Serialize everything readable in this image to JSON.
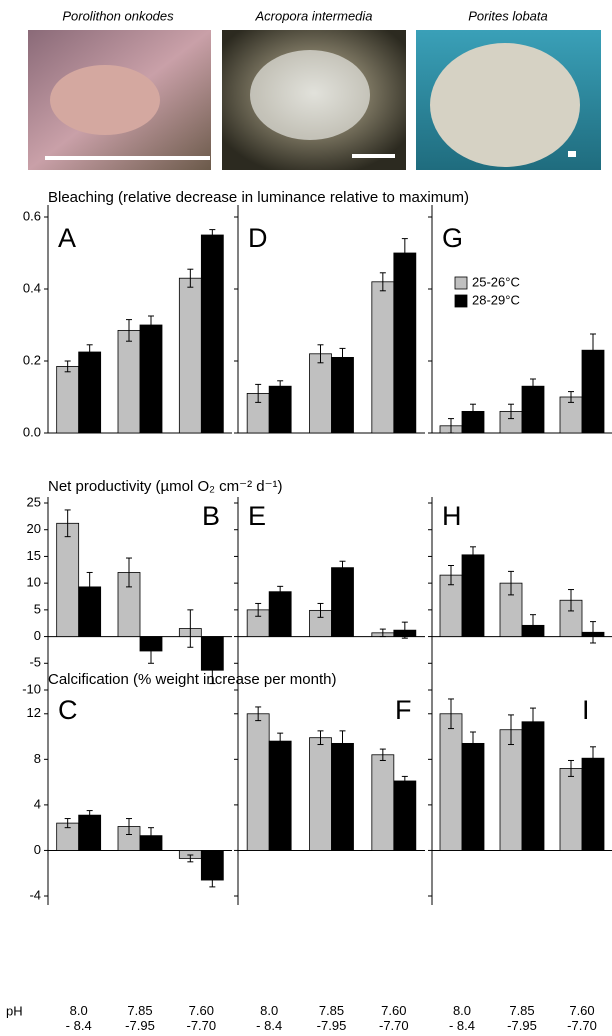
{
  "photos": [
    {
      "caption": "Porolithon onkodes"
    },
    {
      "caption": "Acropora intermedia"
    },
    {
      "caption": "Porites lobata"
    }
  ],
  "row_titles": [
    "Bleaching (relative decrease in luminance relative to maximum)",
    "Net productivity (µmol O₂ cm⁻² d⁻¹)",
    "Calcification (% weight increase per month)"
  ],
  "chart_data": [
    {
      "type": "bar",
      "title": "A",
      "ylim": [
        0,
        0.6
      ],
      "yticks": [
        {
          "value": 0,
          "label": "0.0"
        },
        0.2,
        0.4,
        0.6
      ],
      "tick_labels": true,
      "series": [
        {
          "color": "#c0c0c0",
          "values": [
            0.185,
            0.285,
            0.43
          ],
          "errors": [
            0.015,
            0.03,
            0.025
          ]
        },
        {
          "color": "#000000",
          "values": [
            0.225,
            0.3,
            0.55
          ],
          "errors": [
            0.02,
            0.025,
            0.015
          ]
        }
      ]
    },
    {
      "type": "bar",
      "title": "D",
      "ylim": [
        0,
        0.6
      ],
      "yticks": [
        0,
        0.2,
        0.4,
        0.6
      ],
      "tick_labels": false,
      "series": [
        {
          "color": "#c0c0c0",
          "values": [
            0.11,
            0.22,
            0.42
          ],
          "errors": [
            0.025,
            0.025,
            0.025
          ]
        },
        {
          "color": "#000000",
          "values": [
            0.13,
            0.21,
            0.5
          ],
          "errors": [
            0.015,
            0.025,
            0.04
          ]
        }
      ]
    },
    {
      "type": "bar",
      "title": "G",
      "ylim": [
        0,
        0.6
      ],
      "yticks": [
        0,
        0.2,
        0.4,
        0.6
      ],
      "tick_labels": false,
      "series": [
        {
          "name": "25-26°C",
          "color": "#c0c0c0",
          "values": [
            0.02,
            0.06,
            0.1
          ],
          "errors": [
            0.02,
            0.02,
            0.015
          ]
        },
        {
          "name": "28-29°C",
          "color": "#000000",
          "values": [
            0.06,
            0.13,
            0.23
          ],
          "errors": [
            0.02,
            0.02,
            0.045
          ]
        }
      ]
    },
    {
      "type": "bar",
      "title": "B",
      "ylim": [
        -10,
        25
      ],
      "yticks": [
        -10,
        -5,
        0,
        5,
        10,
        15,
        20,
        25
      ],
      "tick_labels": true,
      "series": [
        {
          "color": "#c0c0c0",
          "values": [
            21.2,
            12,
            1.5
          ],
          "errors": [
            2.5,
            2.7,
            3.5
          ]
        },
        {
          "color": "#000000",
          "values": [
            9.3,
            -2.7,
            -6.3
          ],
          "errors": [
            2.7,
            2.3,
            2.5
          ]
        }
      ]
    },
    {
      "type": "bar",
      "title": "E",
      "ylim": [
        -10,
        25
      ],
      "yticks": [
        -10,
        -5,
        0,
        5,
        10,
        15,
        20,
        25
      ],
      "tick_labels": false,
      "series": [
        {
          "color": "#c0c0c0",
          "values": [
            5,
            4.9,
            0.7
          ],
          "errors": [
            1.2,
            1.3,
            0.7
          ]
        },
        {
          "color": "#000000",
          "values": [
            8.4,
            12.9,
            1.2
          ],
          "errors": [
            1,
            1.2,
            1.5
          ]
        }
      ]
    },
    {
      "type": "bar",
      "title": "H",
      "ylim": [
        -10,
        25
      ],
      "yticks": [
        -10,
        -5,
        0,
        5,
        10,
        15,
        20,
        25
      ],
      "tick_labels": false,
      "series": [
        {
          "color": "#c0c0c0",
          "values": [
            11.5,
            10,
            6.8
          ],
          "errors": [
            1.8,
            2.2,
            2
          ]
        },
        {
          "color": "#000000",
          "values": [
            15.3,
            2.1,
            0.8
          ],
          "errors": [
            1.5,
            2,
            2
          ]
        }
      ]
    },
    {
      "type": "bar",
      "title": "C",
      "ylim": [
        -4,
        14
      ],
      "yticks": [
        -4,
        0,
        4,
        8,
        12
      ],
      "tick_labels": true,
      "x_label": "pH",
      "categories": [
        "8.0\n- 8.4",
        "7.85\n-7.95",
        "7.60\n-7.70"
      ],
      "series": [
        {
          "color": "#c0c0c0",
          "values": [
            2.4,
            2.1,
            -0.7
          ],
          "errors": [
            0.4,
            0.7,
            0.3
          ]
        },
        {
          "color": "#000000",
          "values": [
            3.1,
            1.3,
            -2.6
          ],
          "errors": [
            0.4,
            0.7,
            0.6
          ]
        }
      ]
    },
    {
      "type": "bar",
      "title": "F",
      "ylim": [
        -4,
        14
      ],
      "yticks": [
        -4,
        0,
        4,
        8,
        12
      ],
      "tick_labels": false,
      "categories": [
        "8.0\n- 8.4",
        "7.85\n-7.95",
        "7.60\n-7.70"
      ],
      "series": [
        {
          "color": "#c0c0c0",
          "values": [
            12,
            9.9,
            8.4
          ],
          "errors": [
            0.6,
            0.6,
            0.5
          ]
        },
        {
          "color": "#000000",
          "values": [
            9.6,
            9.4,
            6.1
          ],
          "errors": [
            0.7,
            1.1,
            0.4
          ]
        }
      ]
    },
    {
      "type": "bar",
      "title": "I",
      "ylim": [
        -4,
        14
      ],
      "yticks": [
        -4,
        0,
        4,
        8,
        12
      ],
      "tick_labels": false,
      "categories": [
        "8.0\n- 8.4",
        "7.85\n-7.95",
        "7.60\n-7.70"
      ],
      "series": [
        {
          "color": "#c0c0c0",
          "values": [
            12,
            10.6,
            7.2
          ],
          "errors": [
            1.3,
            1.3,
            0.7
          ]
        },
        {
          "color": "#000000",
          "values": [
            9.4,
            11.3,
            8.1
          ],
          "errors": [
            1,
            1.2,
            1
          ]
        }
      ]
    }
  ]
}
